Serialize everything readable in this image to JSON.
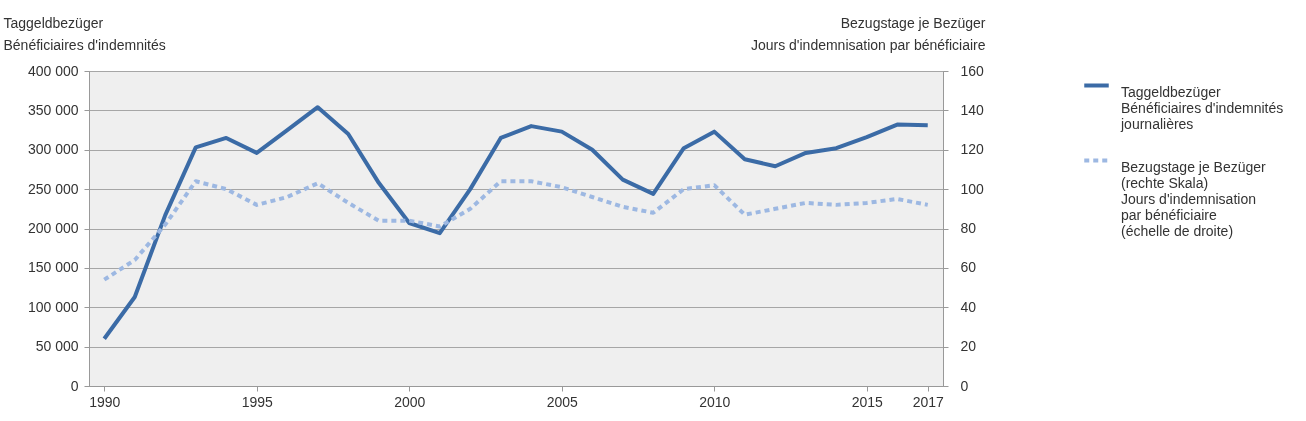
{
  "chart_data": {
    "type": "line",
    "ylabel": "Taggeldbezüger\nBénéficiaires d'indemnités",
    "y2label": "Bezugstage je Bezüger\nJours d'indemnisation par bénéficiaire",
    "x": [
      1990,
      1991,
      1992,
      1993,
      1994,
      1995,
      1996,
      1997,
      1998,
      1999,
      2000,
      2001,
      2002,
      2003,
      2004,
      2005,
      2006,
      2007,
      2008,
      2009,
      2010,
      2011,
      2012,
      2013,
      2014,
      2015,
      2016,
      2017
    ],
    "xlim": [
      1989.5,
      2017.5
    ],
    "xticks": [
      1990,
      1995,
      2000,
      2005,
      2010,
      2015,
      2017
    ],
    "ylim": [
      0,
      400000
    ],
    "yticks": [
      0,
      {
        "value": 50000,
        "label": "50 000"
      },
      {
        "value": 100000,
        "label": "100 000"
      },
      {
        "value": 150000,
        "label": "150 000"
      },
      {
        "value": 200000,
        "label": "200 000"
      },
      {
        "value": 250000,
        "label": "250 000"
      },
      {
        "value": 300000,
        "label": "300 000"
      },
      {
        "value": 350000,
        "label": "350 000"
      },
      {
        "value": 400000,
        "label": "400 000"
      }
    ],
    "y2lim": [
      0,
      160
    ],
    "y2ticks": [
      0,
      20,
      40,
      60,
      80,
      100,
      120,
      140,
      160
    ],
    "grid": "y",
    "legend": "right",
    "series": [
      {
        "name": "Taggeldbezüger\nBénéficiaires d'indemnités\njournalières",
        "color": "#3b6ba6",
        "line_style": "solid",
        "values": [
          60000,
          113000,
          217000,
          303000,
          315000,
          296000,
          325000,
          354000,
          320000,
          258000,
          207000,
          194000,
          250000,
          315000,
          330000,
          323000,
          300000,
          262000,
          244000,
          302000,
          323000,
          288000,
          279000,
          296000,
          302000,
          316000,
          332000,
          331000
        ]
      },
      {
        "name": "Bezugstage je Bezüger\n(rechte Skala)\nJours d'indemnisation\npar bénéficiaire\n(échelle de droite)",
        "color": "#9db8e2",
        "line_style": "dotted",
        "axis": "y2",
        "values": [
          54,
          64,
          82,
          104,
          100,
          92,
          96,
          103,
          93,
          84,
          84,
          81,
          90,
          104,
          104,
          101,
          96,
          91,
          88,
          100,
          102,
          87,
          90,
          93,
          92,
          93,
          95,
          92
        ]
      }
    ]
  }
}
